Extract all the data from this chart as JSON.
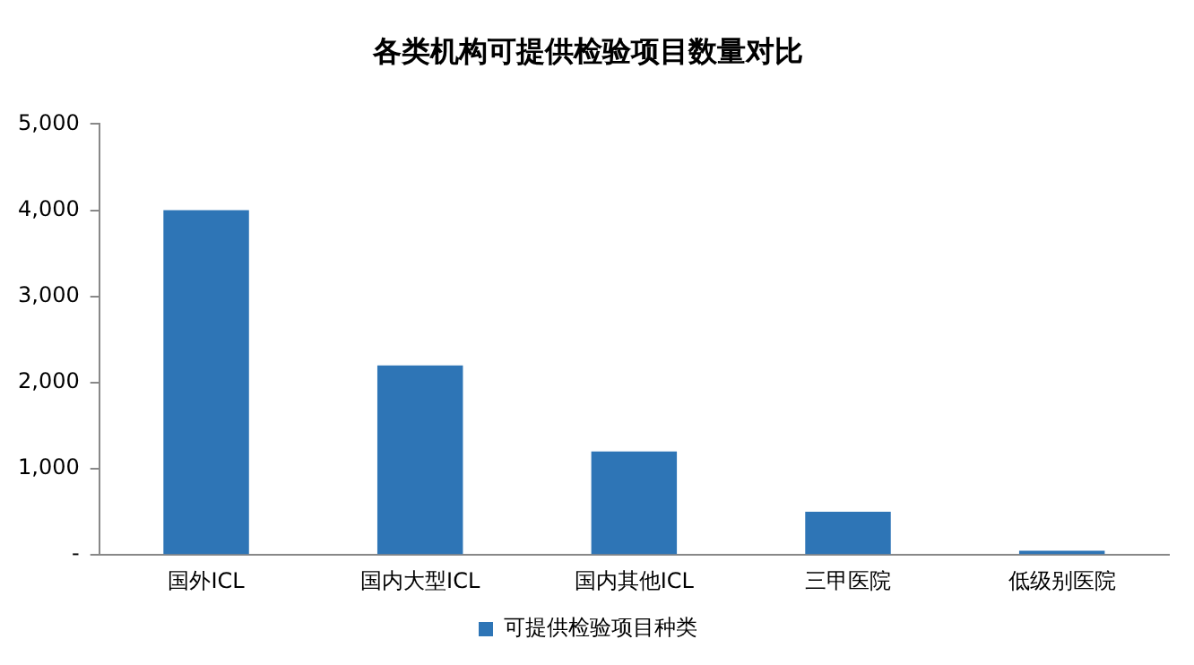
{
  "chart_data": {
    "type": "bar",
    "title": "各类机构可提供检验项目数量对比",
    "categories": [
      "国外ICL",
      "国内大型ICL",
      "国内其他ICL",
      "三甲医院",
      "低级别医院"
    ],
    "series": [
      {
        "name": "可提供检验项目种类",
        "color": "#2e75b6",
        "values": [
          4000,
          2200,
          1200,
          500,
          50
        ]
      }
    ],
    "ylim": [
      0,
      5000
    ],
    "yticks": [
      {
        "value": 0,
        "label": "-"
      },
      {
        "value": 1000,
        "label": "1,000"
      },
      {
        "value": 2000,
        "label": "2,000"
      },
      {
        "value": 3000,
        "label": "3,000"
      },
      {
        "value": 4000,
        "label": "4,000"
      },
      {
        "value": 5000,
        "label": "5,000"
      }
    ],
    "grid": false,
    "legend": "bottom"
  }
}
